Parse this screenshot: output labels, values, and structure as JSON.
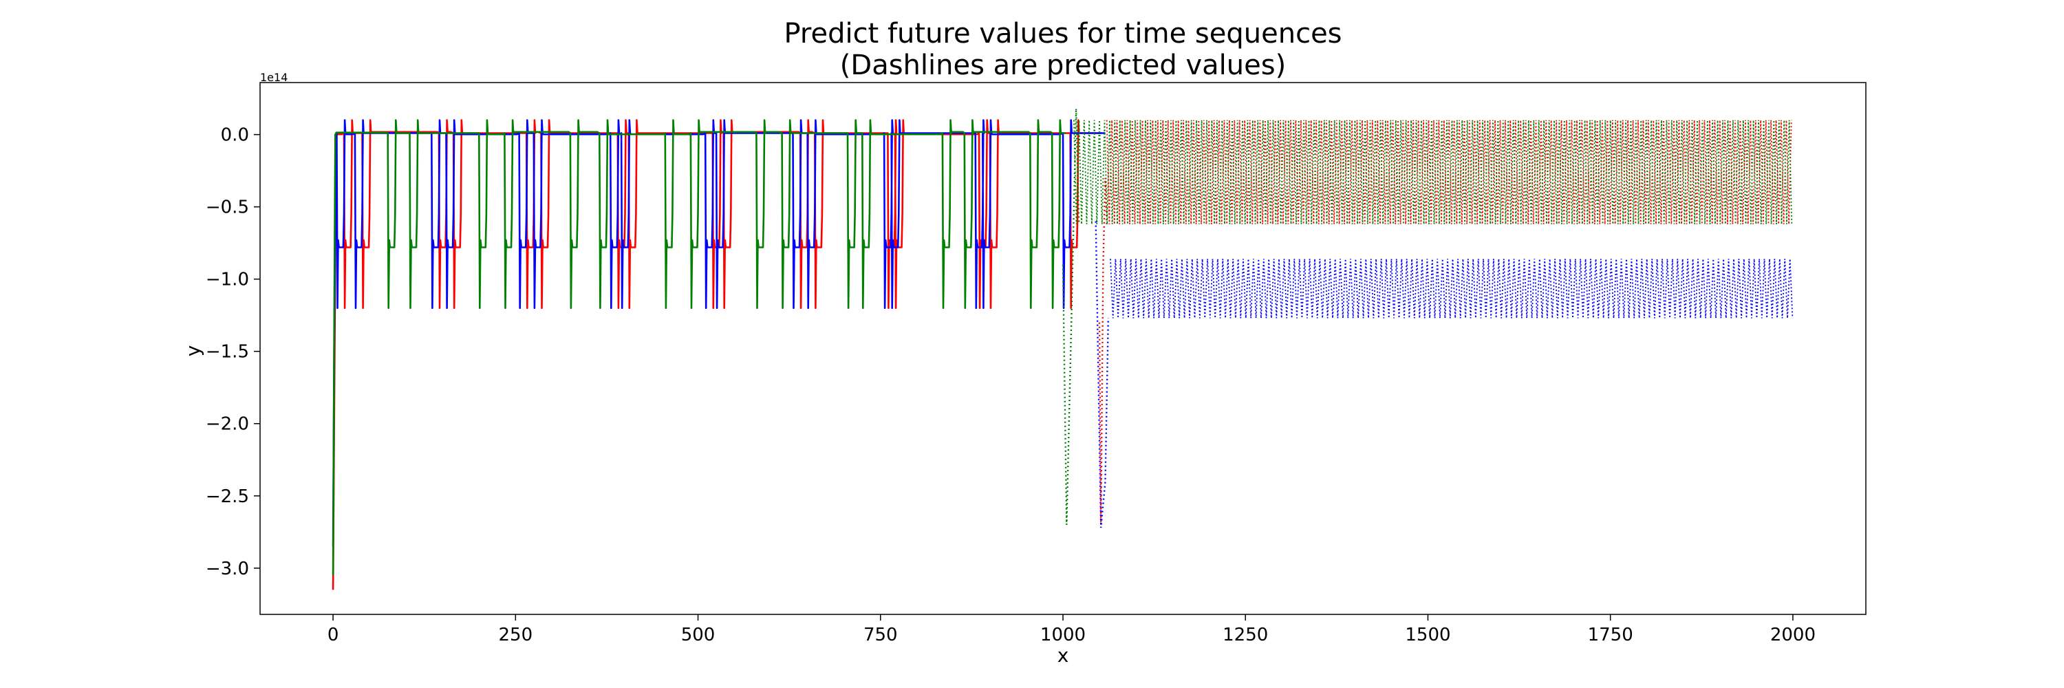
{
  "chart_data": {
    "type": "line",
    "title": [
      "Predict future values for time sequences",
      "(Dashlines are predicted values)"
    ],
    "xlabel": "x",
    "ylabel": "y",
    "y_offset_text": "1e14",
    "y_scale": 100000000000000.0,
    "xlim": [
      -100,
      2100
    ],
    "ylim": [
      -3.32,
      0.36
    ],
    "x_ticks": [
      0,
      250,
      500,
      750,
      1000,
      1250,
      1500,
      1750,
      2000
    ],
    "y_ticks": [
      0.0,
      -0.5,
      -1.0,
      -1.5,
      -2.0,
      -2.5,
      -3.0
    ],
    "y_tick_labels": [
      "0.0",
      "−0.5",
      "−1.0",
      "−1.5",
      "−2.0",
      "−2.5",
      "−3.0"
    ],
    "grid": false,
    "series": [
      {
        "color": "#ff0000",
        "style": "solid",
        "x_range": [
          0,
          1055
        ],
        "start": [
          -3.15,
          -2.0,
          -0.9,
          0.0
        ],
        "baseline": 0.01,
        "trough": -0.78,
        "min": -1.2,
        "peak": 0.1,
        "dip_centers": [
          20,
          45,
          150,
          170,
          270,
          290,
          395,
          410,
          525,
          540,
          645,
          665,
          765,
          775,
          890,
          905,
          1015
        ],
        "crash_x": 1055
      },
      {
        "color": "#0000ff",
        "style": "solid",
        "x_range": [
          0,
          1060
        ],
        "start": [
          -2.85,
          -1.5,
          -0.75,
          0.0
        ],
        "baseline": 0.01,
        "trough": -0.78,
        "min": -1.2,
        "peak": 0.1,
        "dip_centers": [
          10,
          35,
          140,
          160,
          260,
          280,
          385,
          400,
          515,
          530,
          635,
          655,
          760,
          770,
          885,
          895,
          1005
        ],
        "crash_x": 1060
      },
      {
        "color": "#008000",
        "style": "solid",
        "x_range": [
          0,
          1005
        ],
        "start": [
          -3.05,
          -1.35,
          0.0
        ],
        "baseline": 0.01,
        "trough": -0.78,
        "min": -1.2,
        "peak": 0.1,
        "dip_centers": [
          80,
          110,
          205,
          240,
          330,
          370,
          460,
          495,
          585,
          620,
          710,
          730,
          840,
          870,
          960,
          990
        ],
        "crash_x": 1005
      }
    ],
    "predicted": [
      {
        "color": "#ff0000",
        "style": "dotted",
        "x_start": 1060,
        "x_end": 2000,
        "band": [
          -0.62,
          0.1
        ],
        "lead_in": [
          [
            1050,
            -1.3
          ],
          [
            1052,
            -2.7
          ],
          [
            1055,
            -0.9
          ],
          [
            1058,
            -0.3
          ],
          [
            1060,
            -0.62
          ]
        ]
      },
      {
        "color": "#008000",
        "style": "dotted",
        "x_start": 1015,
        "x_end": 2000,
        "band": [
          -0.62,
          0.1
        ],
        "lead_in": [
          [
            1000,
            -0.9
          ],
          [
            1005,
            -2.7
          ],
          [
            1012,
            -1.2
          ],
          [
            1018,
            0.18
          ],
          [
            1022,
            -0.62
          ]
        ]
      },
      {
        "color": "#0000ff",
        "style": "dotted",
        "x_start": 1065,
        "x_end": 2000,
        "band": [
          -1.27,
          -0.86
        ],
        "lead_in": [
          [
            1045,
            -0.6
          ],
          [
            1052,
            -2.72
          ],
          [
            1058,
            -2.4
          ],
          [
            1062,
            -1.27
          ]
        ]
      }
    ]
  }
}
